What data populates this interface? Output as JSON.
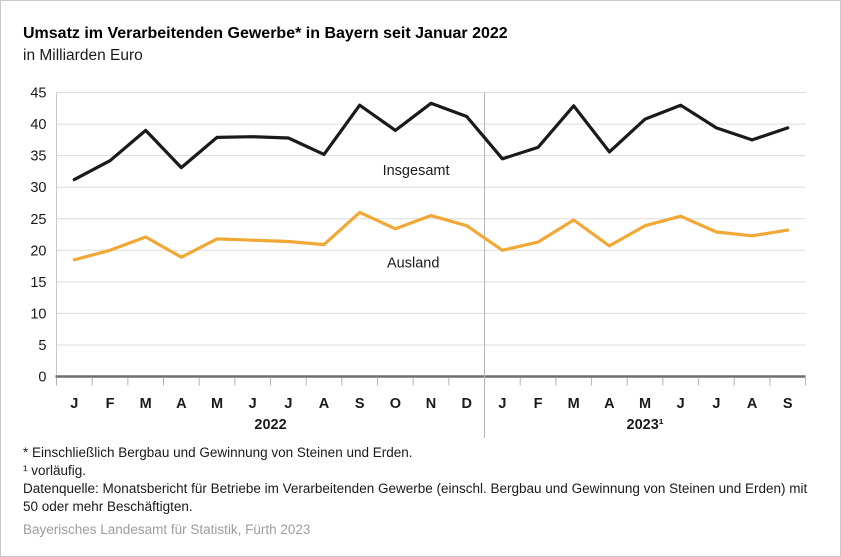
{
  "header": {
    "title": "Umsatz im Verarbeitenden Gewerbe* in Bayern seit Januar 2022",
    "subtitle": "in Milliarden Euro"
  },
  "chart_data": {
    "type": "line",
    "x_labels": [
      "J",
      "F",
      "M",
      "A",
      "M",
      "J",
      "J",
      "A",
      "S",
      "O",
      "N",
      "D",
      "J",
      "F",
      "M",
      "A",
      "M",
      "J",
      "J",
      "A",
      "S"
    ],
    "year_groups": [
      {
        "label": "2022",
        "months": 12
      },
      {
        "label": "2023¹",
        "months": 9
      }
    ],
    "ylim": [
      0,
      45
    ],
    "ytick_step": 5,
    "grid": true,
    "legend_position": "inline-annotations",
    "series": [
      {
        "name": "Insgesamt",
        "color": "#1a1a1a",
        "values": [
          31.2,
          34.2,
          39.0,
          33.1,
          37.9,
          38.0,
          37.8,
          35.2,
          43.0,
          39.0,
          43.3,
          41.2,
          34.5,
          36.3,
          42.9,
          35.6,
          40.8,
          43.0,
          39.4,
          37.5,
          39.4
        ]
      },
      {
        "name": "Ausland",
        "color": "#F2A836",
        "values": [
          18.5,
          20.0,
          22.1,
          18.9,
          21.8,
          21.6,
          21.4,
          20.9,
          26.0,
          23.4,
          25.5,
          23.9,
          20.0,
          21.3,
          24.8,
          20.7,
          23.9,
          25.4,
          22.9,
          22.3,
          23.2
        ]
      }
    ],
    "annotations": [
      {
        "text": "Insgesamt",
        "xi": 9.58,
        "yv": 31.9,
        "color": "#1a1a1a"
      },
      {
        "text": "Ausland",
        "xi": 9.5,
        "yv": 17.3,
        "color": "#F2A836"
      }
    ],
    "axis_colors": {
      "gridline": "#dcdcdc",
      "left_axis": "#c8c8c8",
      "baseline": "#6e6e6e",
      "tick": "#b4b4b4",
      "divider": "#b4b4b4"
    }
  },
  "footnotes": [
    "* Einschließlich Bergbau und Gewinnung von Steinen und Erden.",
    "¹ vorläufig.",
    "Datenquelle: Monatsbericht für Betriebe im Verarbeitenden Gewerbe (einschl. Bergbau und Gewinnung von Steinen und Erden) mit 50 oder mehr Beschäftigten."
  ],
  "source": "Bayerisches Landesamt für Statistik, Fürth 2023"
}
